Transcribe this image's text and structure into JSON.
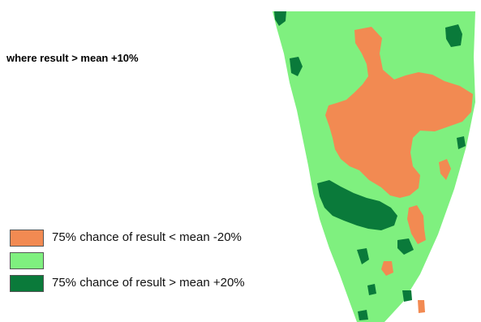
{
  "caption": "where result > mean +10%",
  "colors": {
    "background": "#ffffff",
    "light_green": "#7ff07f",
    "dark_green": "#0a7a3a",
    "orange": "#f28a52"
  },
  "legend": [
    {
      "label": "75% chance of result < mean  -20%",
      "color": "#f28a52"
    },
    {
      "label": "",
      "color": "#7ff07f"
    },
    {
      "label": "75% chance of result > mean +20%",
      "color": "#0a7a3a"
    }
  ]
}
